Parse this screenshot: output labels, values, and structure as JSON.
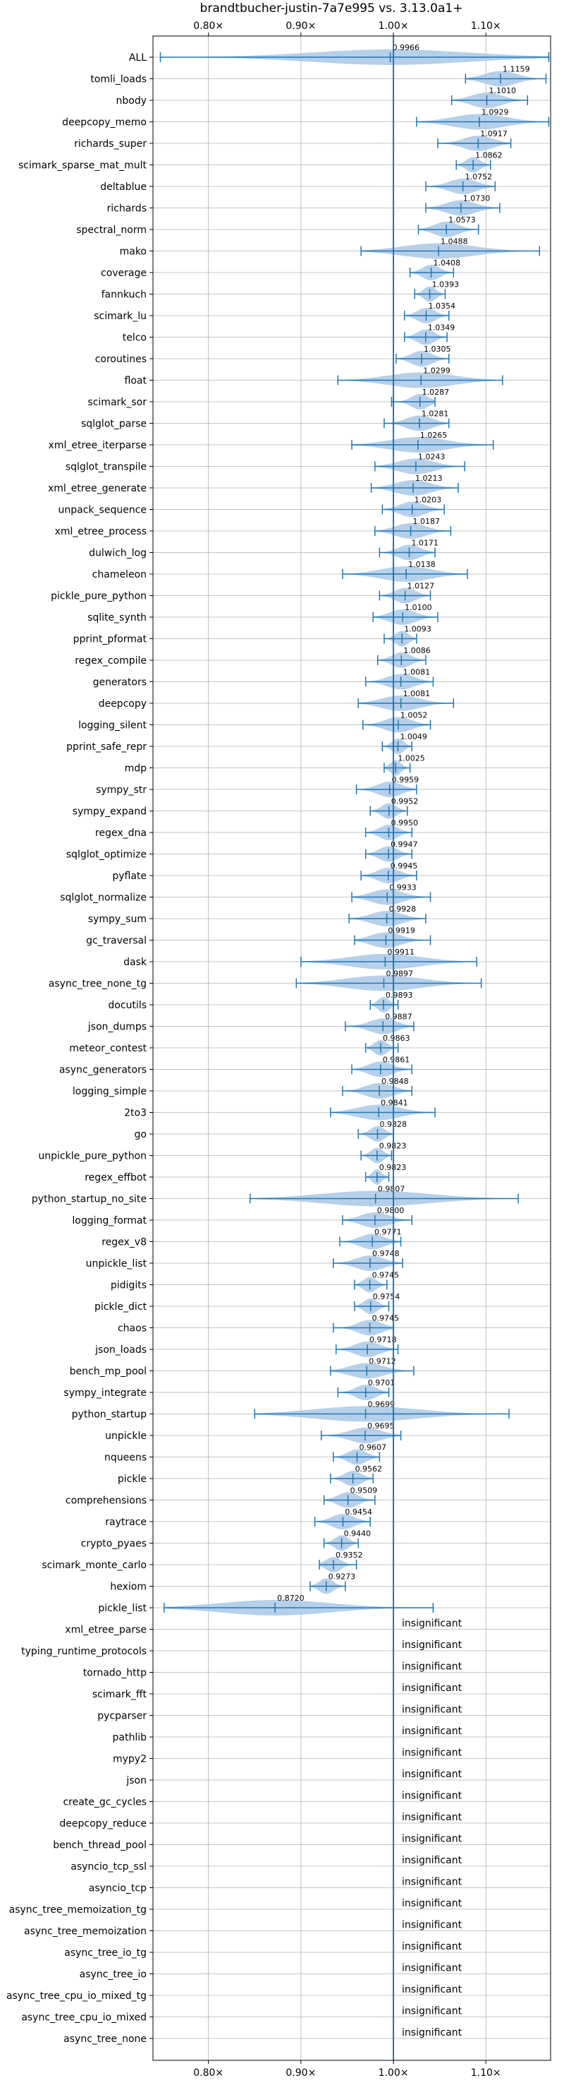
{
  "chart_data": {
    "type": "violin",
    "title": "brandtbucher-justin-7a7e995 vs. 3.13.0a1+",
    "xlabel": "",
    "ylabel": "",
    "xlim": [
      0.74,
      1.17
    ],
    "reference_x": 1.0,
    "grid": true,
    "x_ticks": [
      {
        "value": 0.8,
        "label": "0.80×"
      },
      {
        "value": 0.9,
        "label": "0.90×"
      },
      {
        "value": 1.0,
        "label": "1.00×"
      },
      {
        "value": 1.1,
        "label": "1.10×"
      }
    ],
    "colors": {
      "violin": "#a9c8e6",
      "line": "#1f77b4",
      "grid": "#b0b0b0",
      "axis": "#000000"
    },
    "benchmarks": [
      {
        "name": "ALL",
        "value": 0.9966,
        "label": "0.9966",
        "min": 0.748,
        "max": 1.168
      },
      {
        "name": "tomli_loads",
        "value": 1.1159,
        "label": "1.1159",
        "min": 1.078,
        "max": 1.165
      },
      {
        "name": "nbody",
        "value": 1.101,
        "label": "1.1010",
        "min": 1.063,
        "max": 1.145
      },
      {
        "name": "deepcopy_memo",
        "value": 1.0929,
        "label": "1.0929",
        "min": 1.025,
        "max": 1.168
      },
      {
        "name": "richards_super",
        "value": 1.0917,
        "label": "1.0917",
        "min": 1.048,
        "max": 1.127
      },
      {
        "name": "scimark_sparse_mat_mult",
        "value": 1.0862,
        "label": "1.0862",
        "min": 1.068,
        "max": 1.105
      },
      {
        "name": "deltablue",
        "value": 1.0752,
        "label": "1.0752",
        "min": 1.035,
        "max": 1.11
      },
      {
        "name": "richards",
        "value": 1.073,
        "label": "1.0730",
        "min": 1.035,
        "max": 1.115
      },
      {
        "name": "spectral_norm",
        "value": 1.0573,
        "label": "1.0573",
        "min": 1.027,
        "max": 1.092
      },
      {
        "name": "mako",
        "value": 1.0488,
        "label": "1.0488",
        "min": 0.965,
        "max": 1.158
      },
      {
        "name": "coverage",
        "value": 1.0408,
        "label": "1.0408",
        "min": 1.018,
        "max": 1.065
      },
      {
        "name": "fannkuch",
        "value": 1.0393,
        "label": "1.0393",
        "min": 1.023,
        "max": 1.056
      },
      {
        "name": "scimark_lu",
        "value": 1.0354,
        "label": "1.0354",
        "min": 1.012,
        "max": 1.06
      },
      {
        "name": "telco",
        "value": 1.0349,
        "label": "1.0349",
        "min": 1.012,
        "max": 1.058
      },
      {
        "name": "coroutines",
        "value": 1.0305,
        "label": "1.0305",
        "min": 1.003,
        "max": 1.06
      },
      {
        "name": "float",
        "value": 1.0299,
        "label": "1.0299",
        "min": 0.94,
        "max": 1.118
      },
      {
        "name": "scimark_sor",
        "value": 1.0287,
        "label": "1.0287",
        "min": 0.998,
        "max": 1.045
      },
      {
        "name": "sqlglot_parse",
        "value": 1.0281,
        "label": "1.0281",
        "min": 0.99,
        "max": 1.06
      },
      {
        "name": "xml_etree_iterparse",
        "value": 1.0265,
        "label": "1.0265",
        "min": 0.955,
        "max": 1.108
      },
      {
        "name": "sqlglot_transpile",
        "value": 1.0243,
        "label": "1.0243",
        "min": 0.98,
        "max": 1.077
      },
      {
        "name": "xml_etree_generate",
        "value": 1.0213,
        "label": "1.0213",
        "min": 0.976,
        "max": 1.07
      },
      {
        "name": "unpack_sequence",
        "value": 1.0203,
        "label": "1.0203",
        "min": 0.988,
        "max": 1.055
      },
      {
        "name": "xml_etree_process",
        "value": 1.0187,
        "label": "1.0187",
        "min": 0.98,
        "max": 1.062
      },
      {
        "name": "dulwich_log",
        "value": 1.0171,
        "label": "1.0171",
        "min": 0.985,
        "max": 1.045
      },
      {
        "name": "chameleon",
        "value": 1.0138,
        "label": "1.0138",
        "min": 0.945,
        "max": 1.08
      },
      {
        "name": "pickle_pure_python",
        "value": 1.0127,
        "label": "1.0127",
        "min": 0.985,
        "max": 1.04
      },
      {
        "name": "sqlite_synth",
        "value": 1.01,
        "label": "1.0100",
        "min": 0.978,
        "max": 1.048
      },
      {
        "name": "pprint_pformat",
        "value": 1.0093,
        "label": "1.0093",
        "min": 0.99,
        "max": 1.025
      },
      {
        "name": "regex_compile",
        "value": 1.0086,
        "label": "1.0086",
        "min": 0.983,
        "max": 1.035
      },
      {
        "name": "generators",
        "value": 1.0081,
        "label": "1.0081",
        "min": 0.97,
        "max": 1.043
      },
      {
        "name": "deepcopy",
        "value": 1.0081,
        "label": "1.0081",
        "min": 0.962,
        "max": 1.065
      },
      {
        "name": "logging_silent",
        "value": 1.0052,
        "label": "1.0052",
        "min": 0.967,
        "max": 1.04
      },
      {
        "name": "pprint_safe_repr",
        "value": 1.0049,
        "label": "1.0049",
        "min": 0.988,
        "max": 1.02
      },
      {
        "name": "mdp",
        "value": 1.0025,
        "label": "1.0025",
        "min": 0.99,
        "max": 1.018
      },
      {
        "name": "sympy_str",
        "value": 0.9959,
        "label": "0.9959",
        "min": 0.96,
        "max": 1.025
      },
      {
        "name": "sympy_expand",
        "value": 0.9952,
        "label": "0.9952",
        "min": 0.975,
        "max": 1.015
      },
      {
        "name": "regex_dna",
        "value": 0.995,
        "label": "0.9950",
        "min": 0.97,
        "max": 1.02
      },
      {
        "name": "sqlglot_optimize",
        "value": 0.9947,
        "label": "0.9947",
        "min": 0.97,
        "max": 1.02
      },
      {
        "name": "pyflate",
        "value": 0.9945,
        "label": "0.9945",
        "min": 0.965,
        "max": 1.025
      },
      {
        "name": "sqlglot_normalize",
        "value": 0.9933,
        "label": "0.9933",
        "min": 0.955,
        "max": 1.04
      },
      {
        "name": "sympy_sum",
        "value": 0.9928,
        "label": "0.9928",
        "min": 0.952,
        "max": 1.035
      },
      {
        "name": "gc_traversal",
        "value": 0.9919,
        "label": "0.9919",
        "min": 0.958,
        "max": 1.04
      },
      {
        "name": "dask",
        "value": 0.9911,
        "label": "0.9911",
        "min": 0.9,
        "max": 1.09
      },
      {
        "name": "async_tree_none_tg",
        "value": 0.9897,
        "label": "0.9897",
        "min": 0.895,
        "max": 1.095
      },
      {
        "name": "docutils",
        "value": 0.9893,
        "label": "0.9893",
        "min": 0.975,
        "max": 1.005
      },
      {
        "name": "json_dumps",
        "value": 0.9887,
        "label": "0.9887",
        "min": 0.948,
        "max": 1.022
      },
      {
        "name": "meteor_contest",
        "value": 0.9863,
        "label": "0.9863",
        "min": 0.97,
        "max": 1.005
      },
      {
        "name": "async_generators",
        "value": 0.9861,
        "label": "0.9861",
        "min": 0.955,
        "max": 1.02
      },
      {
        "name": "logging_simple",
        "value": 0.9848,
        "label": "0.9848",
        "min": 0.945,
        "max": 1.02
      },
      {
        "name": "2to3",
        "value": 0.9841,
        "label": "0.9841",
        "min": 0.932,
        "max": 1.045
      },
      {
        "name": "go",
        "value": 0.9828,
        "label": "0.9828",
        "min": 0.962,
        "max": 1.0
      },
      {
        "name": "unpickle_pure_python",
        "value": 0.9823,
        "label": "0.9823",
        "min": 0.965,
        "max": 0.998
      },
      {
        "name": "regex_effbot",
        "value": 0.9823,
        "label": "0.9823",
        "min": 0.97,
        "max": 0.995
      },
      {
        "name": "python_startup_no_site",
        "value": 0.9807,
        "label": "0.9807",
        "min": 0.845,
        "max": 1.135
      },
      {
        "name": "logging_format",
        "value": 0.98,
        "label": "0.9800",
        "min": 0.945,
        "max": 1.02
      },
      {
        "name": "regex_v8",
        "value": 0.9771,
        "label": "0.9771",
        "min": 0.942,
        "max": 1.008
      },
      {
        "name": "unpickle_list",
        "value": 0.9748,
        "label": "0.9748",
        "min": 0.935,
        "max": 1.01
      },
      {
        "name": "pidigits",
        "value": 0.9745,
        "label": "0.9745",
        "min": 0.958,
        "max": 0.993
      },
      {
        "name": "pickle_dict",
        "value": 0.9754,
        "label": "0.9754",
        "min": 0.958,
        "max": 0.995
      },
      {
        "name": "chaos",
        "value": 0.9745,
        "label": "0.9745",
        "min": 0.935,
        "max": 1.0
      },
      {
        "name": "json_loads",
        "value": 0.9718,
        "label": "0.9718",
        "min": 0.938,
        "max": 1.005
      },
      {
        "name": "bench_mp_pool",
        "value": 0.9712,
        "label": "0.9712",
        "min": 0.932,
        "max": 1.022
      },
      {
        "name": "sympy_integrate",
        "value": 0.9701,
        "label": "0.9701",
        "min": 0.94,
        "max": 0.995
      },
      {
        "name": "python_startup",
        "value": 0.9699,
        "label": "0.9699",
        "min": 0.85,
        "max": 1.125
      },
      {
        "name": "unpickle",
        "value": 0.9695,
        "label": "0.9695",
        "min": 0.922,
        "max": 1.008
      },
      {
        "name": "nqueens",
        "value": 0.9607,
        "label": "0.9607",
        "min": 0.935,
        "max": 0.985
      },
      {
        "name": "pickle",
        "value": 0.9562,
        "label": "0.9562",
        "min": 0.932,
        "max": 0.978
      },
      {
        "name": "comprehensions",
        "value": 0.9509,
        "label": "0.9509",
        "min": 0.925,
        "max": 0.98
      },
      {
        "name": "raytrace",
        "value": 0.9454,
        "label": "0.9454",
        "min": 0.915,
        "max": 0.975
      },
      {
        "name": "crypto_pyaes",
        "value": 0.944,
        "label": "0.9440",
        "min": 0.925,
        "max": 0.962
      },
      {
        "name": "scimark_monte_carlo",
        "value": 0.9352,
        "label": "0.9352",
        "min": 0.92,
        "max": 0.96
      },
      {
        "name": "hexiom",
        "value": 0.9273,
        "label": "0.9273",
        "min": 0.91,
        "max": 0.948
      },
      {
        "name": "pickle_list",
        "value": 0.872,
        "label": "0.8720",
        "min": 0.752,
        "max": 1.043
      }
    ],
    "insignificant": [
      "xml_etree_parse",
      "typing_runtime_protocols",
      "tornado_http",
      "scimark_fft",
      "pycparser",
      "pathlib",
      "mypy2",
      "json",
      "create_gc_cycles",
      "deepcopy_reduce",
      "bench_thread_pool",
      "asyncio_tcp_ssl",
      "asyncio_tcp",
      "async_tree_memoization_tg",
      "async_tree_memoization",
      "async_tree_io_tg",
      "async_tree_io",
      "async_tree_cpu_io_mixed_tg",
      "async_tree_cpu_io_mixed",
      "async_tree_none"
    ],
    "insignificant_label": "insignificant"
  }
}
